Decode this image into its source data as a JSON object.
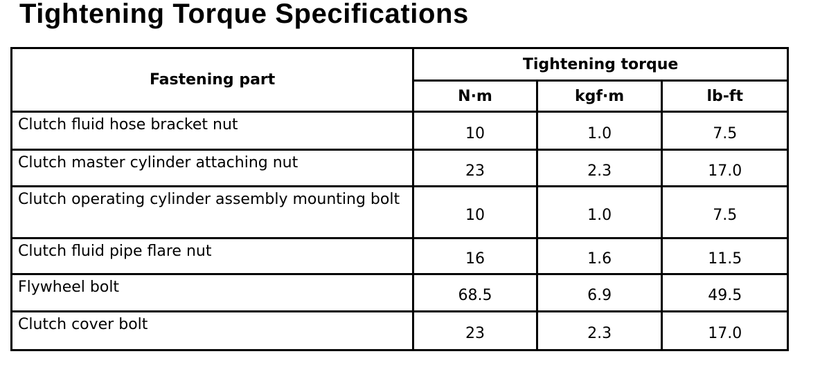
{
  "title": "Tightening Torque Specifications",
  "table": {
    "header": {
      "part": "Fastening part",
      "torque": "Tightening torque",
      "units": [
        "N·m",
        "kgf·m",
        "lb-ft"
      ]
    },
    "rows": [
      {
        "part": "Clutch fluid hose bracket nut",
        "nm": "10",
        "kgfm": "1.0",
        "lbft": "7.5"
      },
      {
        "part": "Clutch master cylinder attaching nut",
        "nm": "23",
        "kgfm": "2.3",
        "lbft": "17.0"
      },
      {
        "part": "Clutch operating cylinder assembly mounting bolt",
        "nm": "10",
        "kgfm": "1.0",
        "lbft": "7.5"
      },
      {
        "part": "Clutch fluid pipe flare nut",
        "nm": "16",
        "kgfm": "1.6",
        "lbft": "11.5"
      },
      {
        "part": "Flywheel bolt",
        "nm": "68.5",
        "kgfm": "6.9",
        "lbft": "49.5"
      },
      {
        "part": "Clutch cover bolt",
        "nm": "23",
        "kgfm": "2.3",
        "lbft": "17.0"
      }
    ]
  }
}
